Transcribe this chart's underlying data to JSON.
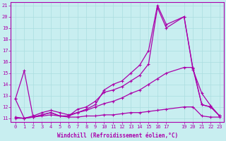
{
  "xlabel": "Windchill (Refroidissement éolien,°C)",
  "xlim": [
    -0.5,
    23.5
  ],
  "ylim": [
    10.7,
    21.3
  ],
  "xticks": [
    0,
    1,
    2,
    3,
    4,
    5,
    6,
    7,
    8,
    9,
    10,
    11,
    12,
    13,
    14,
    15,
    16,
    17,
    19,
    20,
    21,
    22,
    23
  ],
  "yticks": [
    11,
    12,
    13,
    14,
    15,
    16,
    17,
    18,
    19,
    20,
    21
  ],
  "background_color": "#c8eef0",
  "line_color": "#aa00aa",
  "grid_color": "#aadde0",
  "lines": [
    {
      "x": [
        0,
        1,
        2,
        3,
        4,
        5,
        6,
        7,
        8,
        9,
        10,
        11,
        12,
        13,
        14,
        15,
        16,
        17,
        19,
        20,
        21,
        22,
        23
      ],
      "y": [
        12.7,
        15.2,
        11.1,
        11.3,
        11.5,
        11.2,
        11.2,
        11.5,
        11.8,
        12.2,
        13.5,
        14.0,
        14.3,
        15.0,
        15.7,
        17.0,
        21.0,
        19.3,
        20.0,
        15.4,
        12.2,
        12.0,
        11.2
      ]
    },
    {
      "x": [
        0,
        1,
        2,
        3,
        4,
        5,
        6,
        7,
        8,
        9,
        10,
        11,
        12,
        13,
        14,
        15,
        16,
        17,
        19,
        20,
        21,
        22,
        23
      ],
      "y": [
        12.7,
        11.0,
        11.1,
        11.3,
        11.5,
        11.2,
        11.2,
        11.8,
        12.0,
        12.5,
        13.3,
        13.5,
        13.8,
        14.3,
        14.8,
        15.8,
        20.8,
        19.0,
        20.0,
        15.3,
        13.2,
        12.1,
        11.2
      ]
    },
    {
      "x": [
        0,
        1,
        2,
        3,
        4,
        5,
        6,
        7,
        8,
        9,
        10,
        11,
        12,
        13,
        14,
        15,
        16,
        17,
        19,
        20,
        21,
        22,
        23
      ],
      "y": [
        11.1,
        11.0,
        11.2,
        11.5,
        11.7,
        11.5,
        11.3,
        11.5,
        11.7,
        12.0,
        12.3,
        12.5,
        12.8,
        13.2,
        13.5,
        14.0,
        14.5,
        15.0,
        15.5,
        15.5,
        12.2,
        12.0,
        11.2
      ]
    },
    {
      "x": [
        0,
        1,
        2,
        3,
        4,
        5,
        6,
        7,
        8,
        9,
        10,
        11,
        12,
        13,
        14,
        15,
        16,
        17,
        19,
        20,
        21,
        22,
        23
      ],
      "y": [
        11.0,
        11.0,
        11.1,
        11.2,
        11.3,
        11.2,
        11.1,
        11.1,
        11.2,
        11.2,
        11.3,
        11.3,
        11.4,
        11.5,
        11.5,
        11.6,
        11.7,
        11.8,
        12.0,
        12.0,
        11.2,
        11.1,
        11.1
      ]
    }
  ]
}
